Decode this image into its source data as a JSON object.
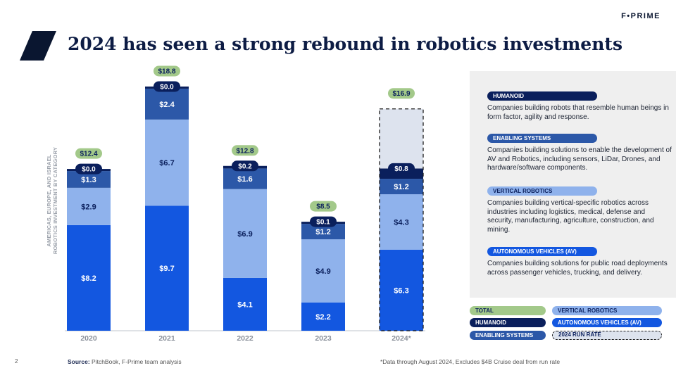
{
  "brand": "F•PRIME",
  "title": "2024 has seen a strong rebound in robotics investments",
  "ylabel_line1": "AMERICAS, EUROPE, AND ISRAEL",
  "ylabel_line2": "ROBOTICS INVESTMENT BY CATEGORY",
  "colors": {
    "autonomous": "#1357e0",
    "vertical": "#8fb2ec",
    "enabling": "#2c58a8",
    "humanoid": "#0a1f5c",
    "total": "#a3c98a",
    "run_rate": "#dde3ee"
  },
  "chart_data": {
    "type": "bar",
    "stacked": true,
    "categories": [
      "2020",
      "2021",
      "2022",
      "2023",
      "2024*"
    ],
    "series": [
      {
        "name": "AUTONOMOUS VEHICLES (AV)",
        "values": [
          8.2,
          9.7,
          4.1,
          2.2,
          6.3
        ],
        "labels": [
          "$8.2",
          "$9.7",
          "$4.1",
          "$2.2",
          "$6.3"
        ]
      },
      {
        "name": "VERTICAL ROBOTICS",
        "values": [
          2.9,
          6.7,
          6.9,
          4.9,
          4.3
        ],
        "labels": [
          "$2.9",
          "$6.7",
          "$6.9",
          "$4.9",
          "$4.3"
        ]
      },
      {
        "name": "ENABLING SYSTEMS",
        "values": [
          1.3,
          2.4,
          1.6,
          1.2,
          1.2
        ],
        "labels": [
          "$1.3",
          "$2.4",
          "$1.6",
          "$1.2",
          "$1.2"
        ]
      },
      {
        "name": "HUMANOID",
        "values": [
          0.0,
          0.0,
          0.2,
          0.1,
          0.8
        ],
        "labels": [
          "$0.0",
          "$0.0",
          "$0.2",
          "$0.1",
          "$0.8"
        ]
      },
      {
        "name": "2024 RUN RATE",
        "values": [
          0,
          0,
          0,
          0,
          4.3
        ]
      }
    ],
    "totals": [
      12.4,
      18.8,
      12.8,
      8.5,
      16.9
    ],
    "total_labels": [
      "$12.4",
      "$18.8",
      "$12.8",
      "$8.5",
      "$16.9"
    ],
    "ylim": [
      0,
      19
    ]
  },
  "categories_panel": [
    {
      "label": "HUMANOID",
      "desc": "Companies building robots that resemble human beings in form factor, agility and response.",
      "color": "#0a1f5c"
    },
    {
      "label": "ENABLING SYSTEMS",
      "desc": "Companies building solutions to enable the development of AV and Robotics, including sensors, LiDar, Drones, and hardware/software components.",
      "color": "#2c58a8"
    },
    {
      "label": "VERTICAL ROBOTICS",
      "desc": "Companies building vertical-specific robotics across industries including logistics, medical, defense and security, manufacturing, agriculture, construction, and mining.",
      "color": "#8fb2ec"
    },
    {
      "label": "AUTONOMOUS VEHICLES (AV)",
      "desc": "Companies building solutions for public road deployments across passenger vehicles, trucking, and delivery.",
      "color": "#1357e0"
    }
  ],
  "legend": {
    "total": "TOTAL",
    "humanoid": "HUMANOID",
    "enabling": "ENABLING SYSTEMS",
    "vertical": "VERTICAL ROBOTICS",
    "autonomous": "AUTONOMOUS VEHICLES (AV)",
    "run_rate": "2024 RUN RATE"
  },
  "footer": {
    "page": "2",
    "source_label": "Source:",
    "source_text": "PitchBook, F-Prime team analysis",
    "note": "*Data through August 2024, Excludes $4B Cruise deal from run rate"
  }
}
